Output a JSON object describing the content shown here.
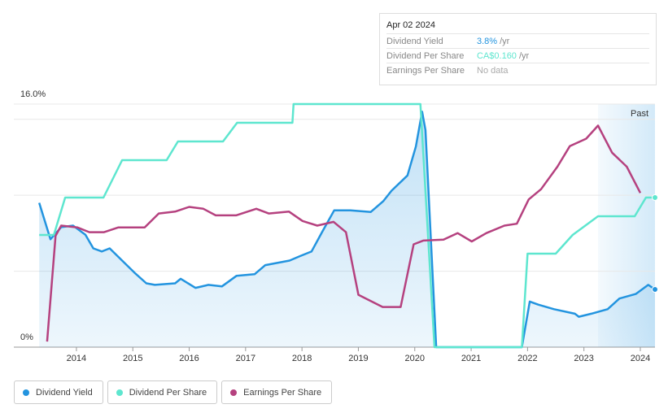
{
  "chart_data": {
    "type": "line",
    "xlim": [
      2012.89,
      2024.26
    ],
    "xticks": [
      2014,
      2015,
      2016,
      2017,
      2018,
      2019,
      2020,
      2021,
      2022,
      2023,
      2024
    ],
    "ylim": [
      0,
      16
    ],
    "yticks": [
      {
        "value": 0,
        "label": "0%"
      },
      {
        "value": 16,
        "label": "16.0%"
      }
    ],
    "ygrid": [
      0,
      5,
      10,
      15,
      16
    ],
    "y2lim": [
      0,
      0.26
    ],
    "past_region": {
      "label": "Past",
      "from": 2023.25
    },
    "series": [
      {
        "name": "Dividend Yield",
        "color": "#2394df",
        "fill": true,
        "x": [
          2013.34,
          2013.54,
          2013.73,
          2013.94,
          2014.16,
          2014.3,
          2014.45,
          2014.59,
          2014.81,
          2015.03,
          2015.24,
          2015.39,
          2015.75,
          2015.85,
          2016.11,
          2016.34,
          2016.58,
          2016.84,
          2017.16,
          2017.35,
          2017.78,
          2017.97,
          2018.17,
          2018.36,
          2018.57,
          2018.86,
          2019.22,
          2019.44,
          2019.59,
          2019.87,
          2020.02,
          2020.13,
          2020.19,
          2020.38,
          2021.9,
          2022.04,
          2022.19,
          2022.47,
          2022.84,
          2022.91,
          2023.13,
          2023.42,
          2023.63,
          2023.92,
          2024.14,
          2024.26
        ],
        "values": [
          9.5,
          7.1,
          7.9,
          8.0,
          7.4,
          6.5,
          6.3,
          6.5,
          5.7,
          4.9,
          4.2,
          4.1,
          4.2,
          4.5,
          3.9,
          4.1,
          4.0,
          4.7,
          4.8,
          5.4,
          5.7,
          6.0,
          6.3,
          7.6,
          9.0,
          9.0,
          8.9,
          9.6,
          10.3,
          11.3,
          13.2,
          15.5,
          14.3,
          0,
          0,
          3.0,
          2.8,
          2.5,
          2.2,
          2.0,
          2.2,
          2.5,
          3.2,
          3.5,
          4.1,
          3.8
        ]
      },
      {
        "name": "Dividend Per Share",
        "color": "#5ee6cf",
        "axis": "y2",
        "x": [
          2013.34,
          2013.6,
          2013.8,
          2014.48,
          2014.81,
          2015.6,
          2015.8,
          2016.6,
          2016.85,
          2017.83,
          2017.85,
          2020.1,
          2020.35,
          2021.9,
          2022.0,
          2022.5,
          2022.8,
          2023.25,
          2023.9,
          2024.1,
          2024.26
        ],
        "values": [
          0.12,
          0.12,
          0.16,
          0.16,
          0.2,
          0.2,
          0.22,
          0.22,
          0.24,
          0.24,
          0.26,
          0.26,
          0,
          0,
          0.1,
          0.1,
          0.12,
          0.14,
          0.14,
          0.16,
          0.16
        ]
      },
      {
        "name": "Earnings Per Share",
        "color": "#b5417f",
        "axis": "y2",
        "x": [
          2013.48,
          2013.63,
          2013.73,
          2014.02,
          2014.23,
          2014.49,
          2014.74,
          2015.21,
          2015.46,
          2015.75,
          2016.0,
          2016.25,
          2016.47,
          2016.83,
          2017.19,
          2017.41,
          2017.77,
          2018.01,
          2018.27,
          2018.56,
          2018.78,
          2019.0,
          2019.43,
          2019.75,
          2019.98,
          2020.15,
          2020.51,
          2020.76,
          2021.01,
          2021.27,
          2021.59,
          2021.81,
          2022.02,
          2022.24,
          2022.53,
          2022.75,
          2023.04,
          2023.25,
          2023.5,
          2023.76,
          2024.0
        ],
        "values": [
          0.006,
          0.119,
          0.13,
          0.128,
          0.123,
          0.123,
          0.128,
          0.128,
          0.143,
          0.145,
          0.15,
          0.148,
          0.141,
          0.141,
          0.148,
          0.143,
          0.145,
          0.135,
          0.13,
          0.134,
          0.123,
          0.056,
          0.043,
          0.043,
          0.11,
          0.114,
          0.115,
          0.122,
          0.113,
          0.122,
          0.13,
          0.132,
          0.158,
          0.169,
          0.193,
          0.215,
          0.223,
          0.237,
          0.208,
          0.193,
          0.165
        ]
      }
    ],
    "tooltip": {
      "date": "Apr 02 2024",
      "rows": [
        {
          "label": "Dividend Yield",
          "value": "3.8%",
          "unit": "/yr",
          "color": "#2394df"
        },
        {
          "label": "Dividend Per Share",
          "value": "CA$0.160",
          "unit": "/yr",
          "color": "#5ee6cf"
        },
        {
          "label": "Earnings Per Share",
          "value": "No data",
          "color": "#aaaaaa"
        }
      ]
    }
  }
}
